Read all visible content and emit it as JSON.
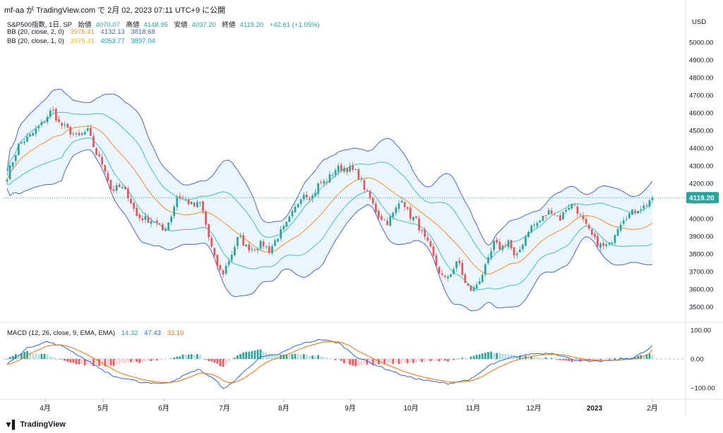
{
  "header": {
    "attribution": "mf-aa が TradingView.com で 2月 02, 2023 07:11 UTC+9 に公開"
  },
  "legend": {
    "symbol": "S&P500指数, 1日, SP",
    "open_label": "始値",
    "open": "4070.07",
    "high_label": "高値",
    "high": "4148.95",
    "low_label": "安値",
    "low": "4037.20",
    "close_label": "終値",
    "close": "4119.20",
    "change": "+42.61 (+1.05%)",
    "bb1": {
      "label": "BB (20, close, 2, 0)",
      "basis": "3975.41",
      "upper": "4132.13",
      "lower": "3818.68"
    },
    "bb2": {
      "label": "BB (20, close, 1, 0)",
      "basis": "3975.41",
      "upper": "4053.77",
      "lower": "3897.04"
    },
    "macd": {
      "label": "MACD (12, 26, close, 9, EMA, EMA)",
      "hist": "14.32",
      "macd": "47.43",
      "signal": "33.10"
    }
  },
  "price_axis": {
    "currency": "USD",
    "ticks": [
      "5000.00",
      "4900.00",
      "4800.00",
      "4700.00",
      "4600.00",
      "4500.00",
      "4400.00",
      "4300.00",
      "4200.00",
      "4100.00",
      "4000.00",
      "3900.00",
      "3800.00",
      "3700.00",
      "3600.00",
      "3500.00"
    ],
    "last_price": "4119.20"
  },
  "macd_axis": {
    "ticks": [
      "100.00",
      "0.00",
      "−100.00"
    ]
  },
  "time_axis": {
    "ticks": [
      "4月",
      "5月",
      "6月",
      "7月",
      "8月",
      "9月",
      "10月",
      "11月",
      "12月",
      "2023",
      "2月"
    ]
  },
  "footer": {
    "brand": "TradingView"
  },
  "colors": {
    "up": "#26a69a",
    "down": "#ef5350",
    "bb2_band": "#3fbfc7",
    "bb_outer": "#4466dd",
    "basis": "#ff8c1a",
    "fill": "#e3f2fd",
    "macd": "#2962ff",
    "signal": "#ff6d00",
    "hist_up_strong": "#26a69a",
    "hist_up_weak": "#b2dfdb",
    "hist_down_strong": "#ff5252",
    "hist_down_weak": "#ffcdd2"
  },
  "chart_data": {
    "type": "candlestick",
    "x_range": [
      "2022-03-10",
      "2023-02-01"
    ],
    "price_ylim": [
      3470,
      5100
    ],
    "macd_ylim": [
      -125,
      100
    ],
    "close_anchors": [
      [
        0,
        4240
      ],
      [
        5,
        4420
      ],
      [
        10,
        4470
      ],
      [
        15,
        4540
      ],
      [
        19,
        4620
      ],
      [
        22,
        4540
      ],
      [
        26,
        4500
      ],
      [
        30,
        4460
      ],
      [
        34,
        4500
      ],
      [
        38,
        4360
      ],
      [
        41,
        4300
      ],
      [
        44,
        4160
      ],
      [
        48,
        4180
      ],
      [
        51,
        4140
      ],
      [
        55,
        4010
      ],
      [
        58,
        4000
      ],
      [
        62,
        3990
      ],
      [
        66,
        3930
      ],
      [
        69,
        4000
      ],
      [
        72,
        4130
      ],
      [
        75,
        4110
      ],
      [
        79,
        4070
      ],
      [
        82,
        4090
      ],
      [
        85,
        3910
      ],
      [
        88,
        3760
      ],
      [
        91,
        3680
      ],
      [
        95,
        3800
      ],
      [
        98,
        3900
      ],
      [
        101,
        3840
      ],
      [
        104,
        3830
      ],
      [
        108,
        3860
      ],
      [
        111,
        3820
      ],
      [
        115,
        3910
      ],
      [
        118,
        3960
      ],
      [
        122,
        4060
      ],
      [
        125,
        4150
      ],
      [
        129,
        4120
      ],
      [
        132,
        4200
      ],
      [
        135,
        4210
      ],
      [
        139,
        4280
      ],
      [
        142,
        4290
      ],
      [
        145,
        4280
      ],
      [
        148,
        4260
      ],
      [
        151,
        4180
      ],
      [
        154,
        4100
      ],
      [
        157,
        4020
      ],
      [
        161,
        3980
      ],
      [
        164,
        4040
      ],
      [
        167,
        4120
      ],
      [
        170,
        4020
      ],
      [
        173,
        3990
      ],
      [
        176,
        3900
      ],
      [
        179,
        3830
      ],
      [
        182,
        3720
      ],
      [
        185,
        3650
      ],
      [
        188,
        3700
      ],
      [
        191,
        3760
      ],
      [
        194,
        3620
      ],
      [
        197,
        3590
      ],
      [
        200,
        3660
      ],
      [
        203,
        3740
      ],
      [
        206,
        3860
      ],
      [
        209,
        3830
      ],
      [
        212,
        3880
      ],
      [
        215,
        3760
      ],
      [
        218,
        3860
      ],
      [
        221,
        3950
      ],
      [
        224,
        3970
      ],
      [
        227,
        4010
      ],
      [
        230,
        4050
      ],
      [
        234,
        4000
      ],
      [
        237,
        4070
      ],
      [
        240,
        4080
      ],
      [
        243,
        4000
      ],
      [
        246,
        3930
      ],
      [
        249,
        3870
      ],
      [
        252,
        3840
      ],
      [
        255,
        3850
      ],
      [
        258,
        3950
      ],
      [
        261,
        4010
      ],
      [
        264,
        4030
      ],
      [
        267,
        4060
      ],
      [
        270,
        4070
      ],
      [
        273,
        4130
      ]
    ],
    "candle_count": 225,
    "macd_anchors": [
      [
        0,
        -18
      ],
      [
        8,
        40
      ],
      [
        15,
        60
      ],
      [
        22,
        40
      ],
      [
        30,
        -5
      ],
      [
        40,
        -60
      ],
      [
        50,
        -80
      ],
      [
        60,
        -85
      ],
      [
        66,
        -60
      ],
      [
        72,
        -35
      ],
      [
        78,
        -70
      ],
      [
        82,
        -105
      ],
      [
        88,
        -55
      ],
      [
        95,
        5
      ],
      [
        102,
        15
      ],
      [
        110,
        50
      ],
      [
        118,
        68
      ],
      [
        125,
        55
      ],
      [
        132,
        5
      ],
      [
        140,
        -25
      ],
      [
        150,
        -60
      ],
      [
        158,
        -75
      ],
      [
        166,
        -85
      ],
      [
        175,
        -70
      ],
      [
        182,
        -20
      ],
      [
        190,
        5
      ],
      [
        198,
        18
      ],
      [
        206,
        20
      ],
      [
        212,
        0
      ],
      [
        220,
        -10
      ],
      [
        228,
        -5
      ],
      [
        236,
        5
      ],
      [
        243,
        40
      ]
    ]
  }
}
